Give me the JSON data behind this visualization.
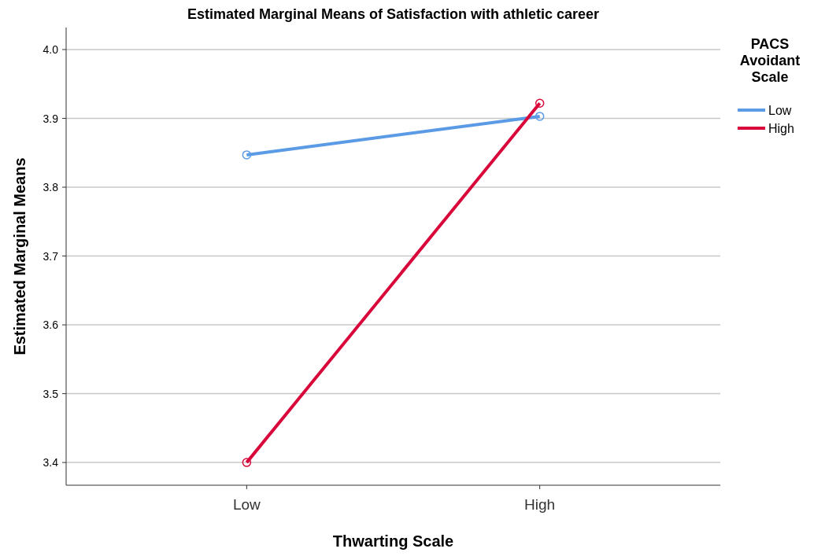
{
  "chart_data": {
    "type": "line",
    "title": "Estimated Marginal Means of Satisfaction with athletic career",
    "xlabel": "Thwarting Scale",
    "ylabel": "Estimated Marginal Means",
    "legend_title": "PACS Avoidant Scale",
    "categories": [
      "Low",
      "High"
    ],
    "series": [
      {
        "name": "Low",
        "color": "#5b9be6",
        "values": [
          3.847,
          3.903
        ]
      },
      {
        "name": "High",
        "color": "#d9083a",
        "values": [
          3.4,
          3.922
        ]
      }
    ],
    "ylim": [
      3.367,
      4.032
    ],
    "yticks": [
      3.4,
      3.5,
      3.6,
      3.7,
      3.8,
      3.9,
      {
        "value": 4,
        "label": "4.0"
      }
    ],
    "grid": "y",
    "legend": "right",
    "marker": "circle",
    "line_style": "solid"
  }
}
